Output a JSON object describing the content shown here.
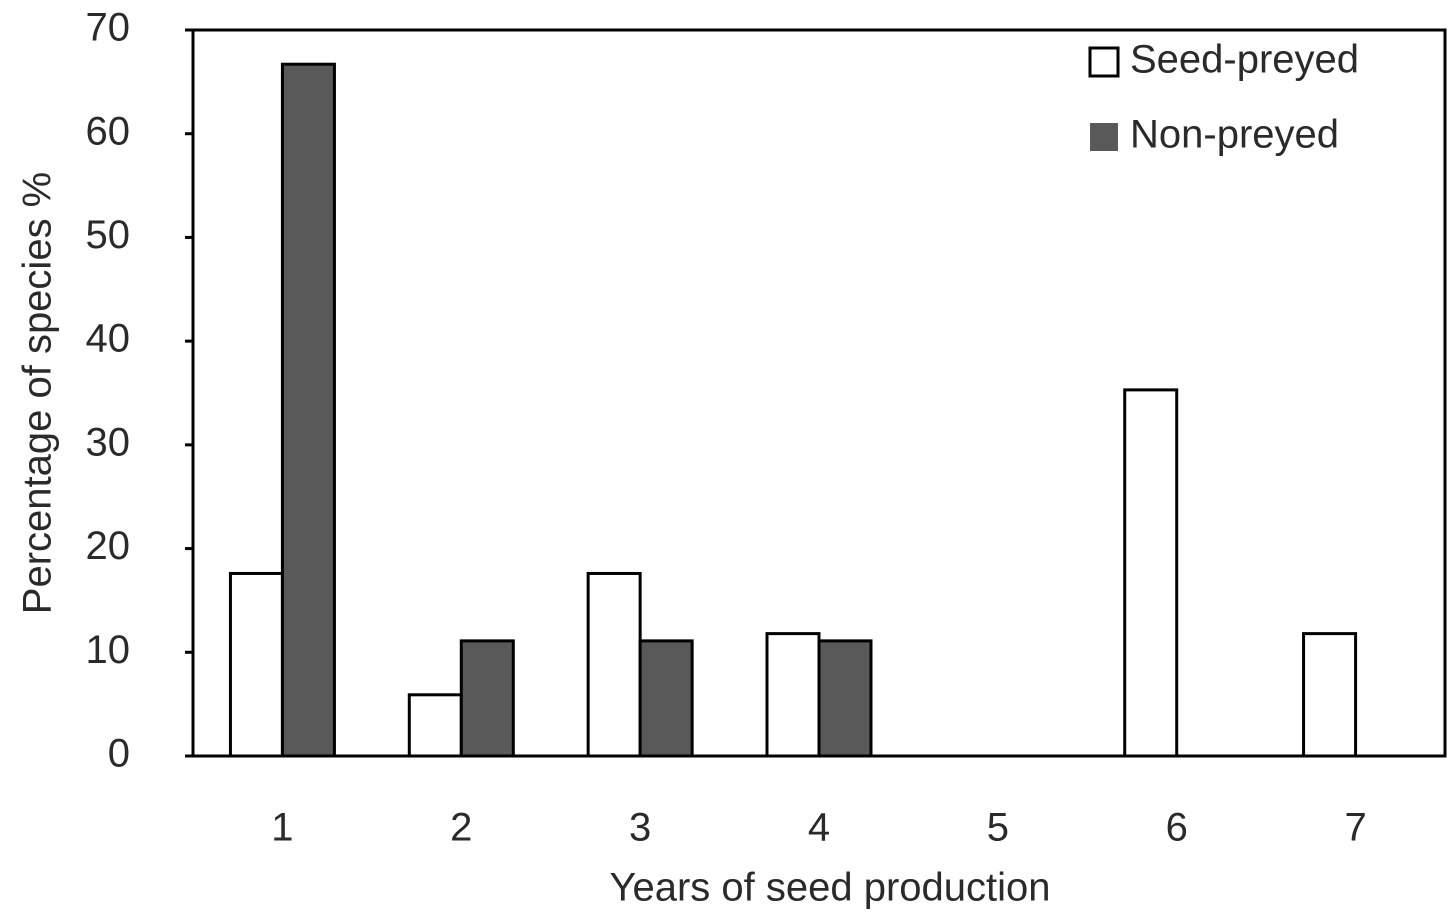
{
  "chart_data": {
    "type": "bar",
    "xlabel": "Years of seed production",
    "ylabel": "Percentage of species %",
    "categories": [
      "1",
      "2",
      "3",
      "4",
      "5",
      "6",
      "7"
    ],
    "series": [
      {
        "name": "Seed-preyed",
        "color": "#ffffff",
        "values": [
          17.6,
          5.9,
          17.6,
          11.8,
          0,
          35.3,
          11.8
        ]
      },
      {
        "name": "Non-preyed",
        "color": "#595959",
        "values": [
          66.7,
          11.1,
          11.1,
          11.1,
          0,
          0,
          0
        ]
      }
    ],
    "ylim": [
      0,
      70
    ],
    "yticks": [
      0,
      10,
      20,
      30,
      40,
      50,
      60,
      70
    ],
    "grid": false,
    "legend": "upper right"
  }
}
